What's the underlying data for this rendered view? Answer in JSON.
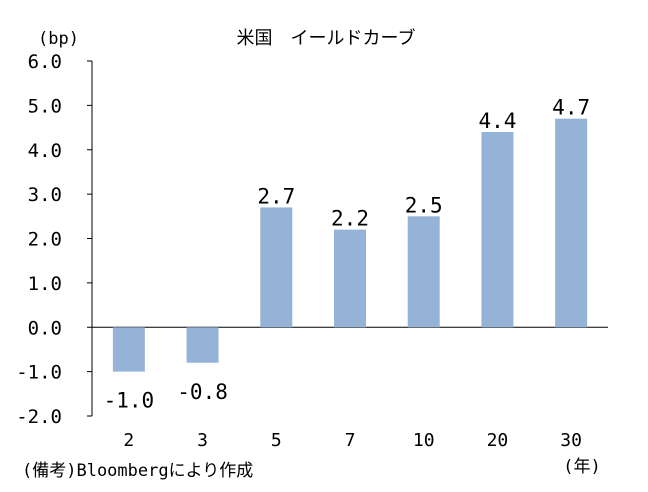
{
  "chart_data": {
    "type": "bar",
    "title": "米国　イールドカーブ",
    "ylabel": "(bp)",
    "xunit": "(年)",
    "note": "(備考)Bloombergにより作成",
    "categories": [
      "2",
      "3",
      "5",
      "7",
      "10",
      "20",
      "30"
    ],
    "values": [
      -1.0,
      -0.8,
      2.7,
      2.2,
      2.5,
      4.4,
      4.7
    ],
    "data_labels": [
      "-1.0",
      "-0.8",
      "2.7",
      "2.2",
      "2.5",
      "4.4",
      "4.7"
    ],
    "yticks": [
      "6.0",
      "5.0",
      "4.0",
      "3.0",
      "2.0",
      "1.0",
      "0.0",
      "-1.0",
      "-2.0"
    ],
    "ylim": [
      -2.0,
      6.0
    ],
    "grid": false,
    "legend": "none",
    "bar_color": "#95B3D7"
  }
}
